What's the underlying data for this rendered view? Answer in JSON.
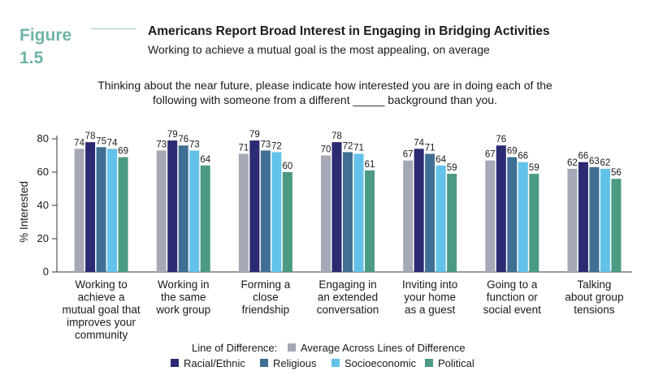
{
  "figure": {
    "label": "Figure",
    "number": "1.5"
  },
  "title": "Americans Report Broad Interest in Engaging in Bridging Activities",
  "subtitle": "Working to achieve a mutual goal is the most appealing, on average",
  "question": {
    "line1": "Thinking about the near future, please indicate how interested you are in doing each of the",
    "line2": "following with someone from a different _____ background than you."
  },
  "colors": {
    "Average Across Lines of Difference": "#a5a9b5",
    "Racial/Ethnic": "#2b2a72",
    "Religious": "#3f6f93",
    "Socioeconomic": "#63c2ea",
    "Political": "#4b9a84"
  },
  "chart_data": {
    "type": "bar",
    "ylabel": "% Interested",
    "ylim": [
      0,
      80
    ],
    "yticks": [
      0,
      20,
      40,
      60,
      80
    ],
    "legend_title": "Line of Difference:",
    "categories": [
      [
        "Working to",
        "achieve a",
        "mutual goal that",
        "improves your",
        "community"
      ],
      [
        "Working in",
        "the same",
        "work group"
      ],
      [
        "Forming a",
        "close",
        "friendship"
      ],
      [
        "Engaging in",
        "an extended",
        "conversation"
      ],
      [
        "Inviting into",
        "your home",
        "as a guest"
      ],
      [
        "Going to a",
        "function or",
        "social event"
      ],
      [
        "Talking",
        "about group",
        "tensions"
      ]
    ],
    "series": [
      {
        "name": "Average Across Lines of Difference",
        "values": [
          74,
          73,
          71,
          70,
          67,
          67,
          62
        ]
      },
      {
        "name": "Racial/Ethnic",
        "values": [
          78,
          79,
          79,
          78,
          74,
          76,
          66
        ]
      },
      {
        "name": "Religious",
        "values": [
          75,
          76,
          73,
          72,
          71,
          69,
          63
        ]
      },
      {
        "name": "Socioeconomic",
        "values": [
          74,
          73,
          72,
          71,
          64,
          66,
          62
        ]
      },
      {
        "name": "Political",
        "values": [
          69,
          64,
          60,
          61,
          59,
          59,
          56
        ]
      }
    ]
  }
}
